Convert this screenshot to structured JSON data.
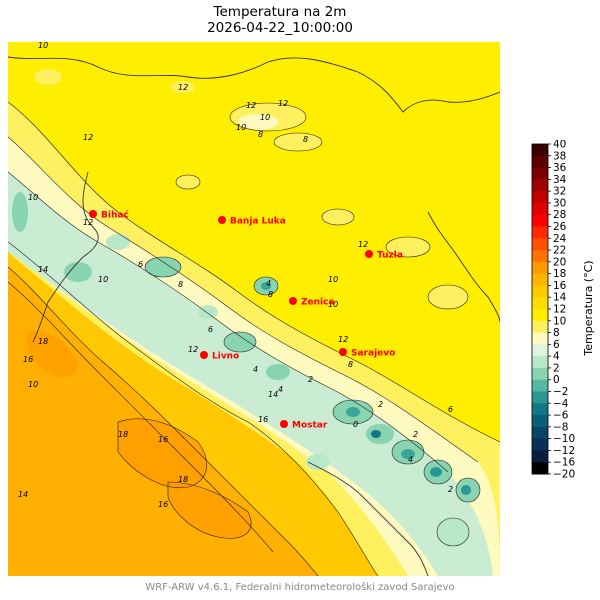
{
  "title": "Temperatura na 2m",
  "subtitle": "2026-04-22_10:00:00",
  "footer": "WRF-ARW v4.6.1, Federalni hidrometeorološki zavod Sarajevo",
  "colorbar": {
    "label": "Temperatura (°C)",
    "ticks": [
      40,
      38,
      36,
      34,
      32,
      30,
      28,
      26,
      24,
      22,
      20,
      18,
      16,
      14,
      12,
      10,
      8,
      6,
      4,
      2,
      0,
      -2,
      -4,
      -6,
      -8,
      -10,
      -12,
      -16,
      -20
    ],
    "tick_labels": [
      "40",
      "38",
      "36",
      "34",
      "32",
      "30",
      "28",
      "26",
      "24",
      "22",
      "20",
      "18",
      "16",
      "14",
      "12",
      "10",
      "8",
      "6",
      "4",
      "2",
      "0",
      "−2",
      "−4",
      "−6",
      "−8",
      "−10",
      "−12",
      "−16",
      "−20"
    ],
    "colors": [
      "#3b0000",
      "#5c0000",
      "#7d0000",
      "#a00000",
      "#c20000",
      "#e00000",
      "#ff0000",
      "#ff2a00",
      "#ff5000",
      "#ff7400",
      "#ff9a00",
      "#ffb400",
      "#ffc800",
      "#ffdc00",
      "#ffee00",
      "#fff060",
      "#fffac0",
      "#e0f5e0",
      "#b8e8c8",
      "#88d4b0",
      "#55b8a0",
      "#2a9890",
      "#127888",
      "#0a5e78",
      "#0a4468",
      "#08305a",
      "#061e40",
      "#000000"
    ]
  },
  "cities": [
    {
      "name": "Bihać"
    },
    {
      "name": "Banja Luka"
    },
    {
      "name": "Tuzla"
    },
    {
      "name": "Zenica"
    },
    {
      "name": "Sarajevo"
    },
    {
      "name": "Livno"
    },
    {
      "name": "Mostar"
    }
  ],
  "contour_labels": [
    "10",
    "12",
    "12",
    "10",
    "12",
    "10",
    "8",
    "12",
    "8",
    "10",
    "14",
    "18",
    "16",
    "18",
    "16",
    "14",
    "16",
    "18",
    "12",
    "8",
    "10",
    "6",
    "4",
    "4",
    "2",
    "8",
    "10",
    "12",
    "4",
    "2",
    "0",
    "6",
    "2",
    "4",
    "2",
    "14",
    "10",
    "12",
    "6",
    "8",
    "10",
    "16",
    "12"
  ],
  "colors": {
    "sea": "#ffb000",
    "coast": "#ffc800",
    "lowland": "#ffee00",
    "hill": "#fff060",
    "mid": "#fffac0",
    "cool": "#c9ecd2",
    "cold": "#88d4b0",
    "colder": "#3aa59a",
    "city": "#ff0000"
  }
}
